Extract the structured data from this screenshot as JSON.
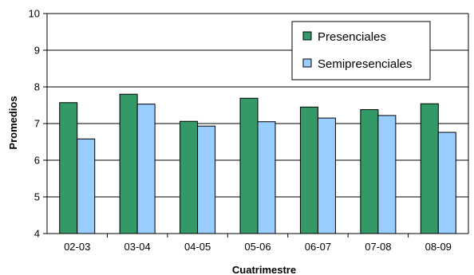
{
  "chart_data": {
    "type": "bar",
    "title": "",
    "xlabel": "Cuatrimestre",
    "ylabel": "Promedios",
    "categories": [
      "02-03",
      "03-04",
      "04-05",
      "05-06",
      "06-07",
      "07-08",
      "08-09"
    ],
    "series": [
      {
        "name": "Presenciales",
        "color": "#339966",
        "values": [
          7.57,
          7.8,
          7.06,
          7.69,
          7.45,
          7.38,
          7.54
        ]
      },
      {
        "name": "Semipresenciales",
        "color": "#99CCFF",
        "values": [
          6.58,
          7.53,
          6.93,
          7.05,
          7.15,
          7.22,
          6.76
        ]
      }
    ],
    "ylim": [
      4,
      10
    ],
    "yticks": [
      4,
      5,
      6,
      7,
      8,
      9,
      10
    ],
    "grid": true,
    "legend": "top-right"
  }
}
